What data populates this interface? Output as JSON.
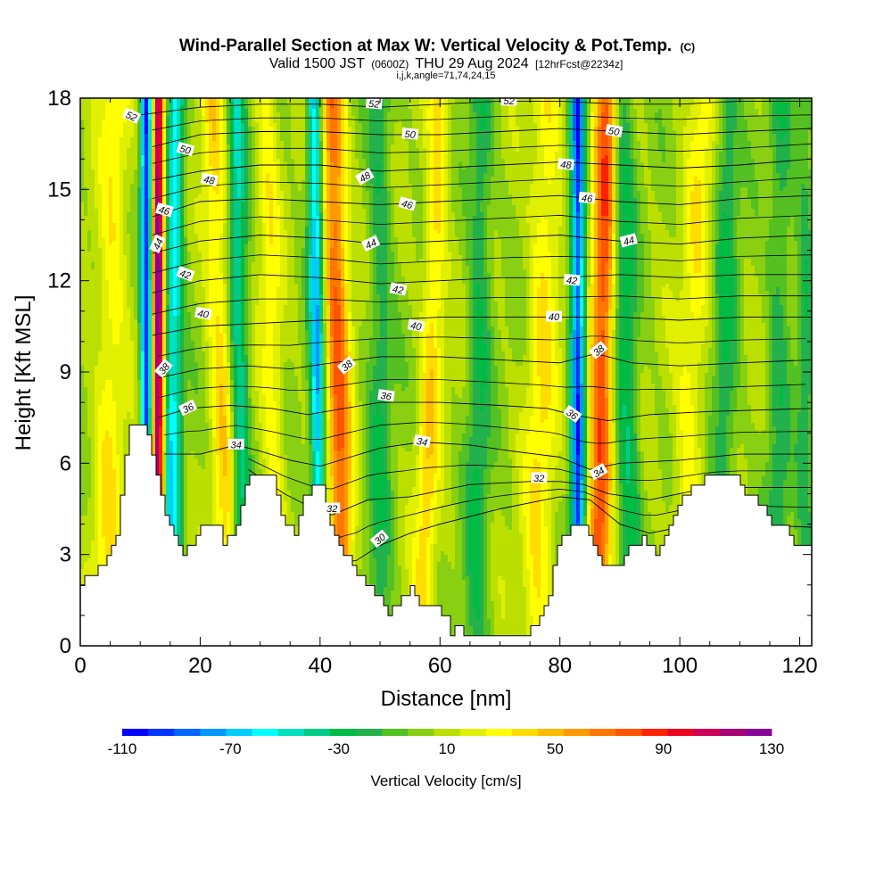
{
  "title": "Wind-Parallel Section at Max W: Vertical Velocity & Pot.Temp.",
  "title_mark": "(C)",
  "subtitle_prefix": "Valid 1500 JST",
  "subtitle_utc": "(0600Z)",
  "subtitle_date": "THU 29 Aug 2024",
  "subtitle_fcst": "[12hrFcst@2234z]",
  "subtitle_line3": "i,j,k,angle=71,74,24,15",
  "chart_data": {
    "type": "heatmap",
    "xlabel": "Distance [nm]",
    "ylabel": "Height [Kft MSL]",
    "xlim": [
      0,
      122
    ],
    "ylim": [
      0,
      18
    ],
    "x_ticks": [
      "0",
      "20",
      "40",
      "60",
      "80",
      "100",
      "120"
    ],
    "y_ticks": [
      "0",
      "3",
      "6",
      "9",
      "12",
      "15",
      "18"
    ],
    "colorbar": {
      "label": "Vertical Velocity [cm/s]",
      "ticks": [
        "-110",
        "-70",
        "-30",
        "10",
        "50",
        "90",
        "130"
      ],
      "min": -110,
      "max": 130,
      "step": 10,
      "colors": [
        "#0000ff",
        "#0033ff",
        "#0066ff",
        "#0099ff",
        "#00ccff",
        "#00ffff",
        "#00e0c0",
        "#00cc88",
        "#00bb44",
        "#22b14c",
        "#55c022",
        "#88d011",
        "#bbe000",
        "#e0f000",
        "#ffff00",
        "#ffdd00",
        "#ffbb00",
        "#ff9900",
        "#ff7700",
        "#ff5500",
        "#ff2200",
        "#ee0022",
        "#cc0055",
        "#aa0077",
        "#880099"
      ]
    },
    "terrain_kft": [
      [
        0,
        2
      ],
      [
        1,
        2.3
      ],
      [
        4,
        2.7
      ],
      [
        6,
        3.5
      ],
      [
        8,
        7.3
      ],
      [
        11,
        7.3
      ],
      [
        12,
        6
      ],
      [
        14,
        4.5
      ],
      [
        16,
        3.5
      ],
      [
        17,
        3
      ],
      [
        19,
        3.5
      ],
      [
        20,
        4
      ],
      [
        23,
        4
      ],
      [
        24,
        3.3
      ],
      [
        26,
        4
      ],
      [
        28,
        5.5
      ],
      [
        32,
        5.5
      ],
      [
        34,
        4
      ],
      [
        36,
        3.6
      ],
      [
        37,
        5
      ],
      [
        40,
        5.3
      ],
      [
        42,
        3.6
      ],
      [
        44,
        3
      ],
      [
        48,
        2
      ],
      [
        50,
        1.5
      ],
      [
        51,
        1
      ],
      [
        53,
        1.3
      ],
      [
        55,
        2
      ],
      [
        57,
        1.3
      ],
      [
        59,
        1.3
      ],
      [
        61,
        1
      ],
      [
        62,
        0.3
      ],
      [
        63,
        0.7
      ],
      [
        64,
        0.3
      ],
      [
        67,
        0.3
      ],
      [
        70,
        0.3
      ],
      [
        74,
        0.3
      ],
      [
        76,
        0.7
      ],
      [
        78,
        1.6
      ],
      [
        79,
        2.7
      ],
      [
        80,
        3.5
      ],
      [
        82,
        4
      ],
      [
        84,
        4
      ],
      [
        86,
        3
      ],
      [
        88,
        2.6
      ],
      [
        90,
        2.7
      ],
      [
        92,
        3.3
      ],
      [
        94,
        3.5
      ],
      [
        96,
        3
      ],
      [
        98,
        3.7
      ],
      [
        99,
        4.3
      ],
      [
        101,
        5
      ],
      [
        105,
        5.6
      ],
      [
        109,
        5.6
      ],
      [
        111,
        5
      ],
      [
        113,
        4.8
      ],
      [
        115,
        4
      ],
      [
        117,
        4
      ],
      [
        119,
        3.3
      ],
      [
        121,
        3.3
      ],
      [
        122,
        3.3
      ]
    ],
    "updrafts": [
      {
        "x": 13,
        "amp": 125,
        "width": 1.0,
        "x_at_top": 13
      },
      {
        "x": 44,
        "amp": 70,
        "width": 2.0,
        "x_at_top": 42
      },
      {
        "x": 86,
        "amp": 80,
        "width": 2.0,
        "x_at_top": 88
      },
      {
        "x": 57,
        "amp": 35,
        "width": 1.8,
        "x_at_top": 60
      },
      {
        "x": 25,
        "amp": 35,
        "width": 2.0,
        "x_at_top": 22
      },
      {
        "x": 76,
        "amp": 30,
        "width": 2.5,
        "x_at_top": 78
      },
      {
        "x": 100,
        "amp": 25,
        "width": 2.5,
        "x_at_top": 104
      },
      {
        "x": 4,
        "amp": 28,
        "width": 2.5,
        "x_at_top": 6
      },
      {
        "x": 33,
        "amp": 25,
        "width": 1.8,
        "x_at_top": 31
      }
    ],
    "downdrafts": [
      {
        "x": 11,
        "amp": 110,
        "width": 0.9,
        "x_at_top": 11
      },
      {
        "x": 83,
        "amp": 105,
        "width": 1.2,
        "x_at_top": 83
      },
      {
        "x": 40,
        "amp": 80,
        "width": 1.2,
        "x_at_top": 39
      },
      {
        "x": 15,
        "amp": 65,
        "width": 1.5,
        "x_at_top": 16
      },
      {
        "x": 27,
        "amp": 50,
        "width": 1.5,
        "x_at_top": 26
      },
      {
        "x": 92,
        "amp": 40,
        "width": 2.0,
        "x_at_top": 90
      },
      {
        "x": 66,
        "amp": 30,
        "width": 2.0,
        "x_at_top": 67
      },
      {
        "x": 50,
        "amp": 28,
        "width": 2.0,
        "x_at_top": 50
      },
      {
        "x": 107,
        "amp": 30,
        "width": 2.0,
        "x_at_top": 108
      },
      {
        "x": 116,
        "amp": 25,
        "width": 2.0,
        "x_at_top": 117
      },
      {
        "x": 121,
        "amp": 25,
        "width": 1.5,
        "x_at_top": 121
      }
    ],
    "isentropes": [
      {
        "theta": 30,
        "label": "30",
        "points": [
          [
            42,
            2.7
          ],
          [
            46,
            2.8
          ],
          [
            50,
            3.3
          ],
          [
            55,
            3.7
          ],
          [
            60,
            4
          ],
          [
            70,
            4.5
          ],
          [
            80,
            4.9
          ],
          [
            85,
            4.8
          ],
          [
            90,
            4
          ],
          [
            95,
            3.7
          ],
          [
            100,
            3.9
          ],
          [
            110,
            4
          ],
          [
            122,
            3.9
          ]
        ]
      },
      {
        "theta": 32,
        "label": "32",
        "points": [
          [
            28,
            5.8
          ],
          [
            34,
            5
          ],
          [
            38,
            4.6
          ],
          [
            42,
            4.3
          ],
          [
            48,
            4.8
          ],
          [
            55,
            4.9
          ],
          [
            65,
            5.3
          ],
          [
            75,
            5.4
          ],
          [
            80,
            5.4
          ],
          [
            84,
            5.3
          ],
          [
            88,
            5
          ],
          [
            95,
            4.8
          ],
          [
            105,
            5.2
          ],
          [
            115,
            5.2
          ],
          [
            122,
            5.2
          ]
        ]
      },
      {
        "theta": 34,
        "label": "34",
        "points": [
          [
            14,
            6.3
          ],
          [
            20,
            6.3
          ],
          [
            26,
            6.6
          ],
          [
            30,
            6.4
          ],
          [
            35,
            6.1
          ],
          [
            40,
            5.9
          ],
          [
            45,
            6.2
          ],
          [
            50,
            6.5
          ],
          [
            57,
            6.7
          ],
          [
            65,
            6.6
          ],
          [
            72,
            6.4
          ],
          [
            80,
            6.2
          ],
          [
            85,
            5.8
          ],
          [
            90,
            6
          ],
          [
            100,
            6.1
          ],
          [
            110,
            6.3
          ],
          [
            122,
            6.3
          ]
        ]
      },
      {
        "theta": 36,
        "label": "36",
        "points": [
          [
            13,
            7.5
          ],
          [
            18,
            7.8
          ],
          [
            25,
            7.9
          ],
          [
            32,
            7.8
          ],
          [
            38,
            7.6
          ],
          [
            44,
            7.8
          ],
          [
            50,
            8
          ],
          [
            60,
            8
          ],
          [
            70,
            7.9
          ],
          [
            78,
            7.8
          ],
          [
            82,
            7.6
          ],
          [
            88,
            7.4
          ],
          [
            95,
            7.6
          ],
          [
            105,
            7.7
          ],
          [
            122,
            7.8
          ]
        ]
      },
      {
        "theta": 38,
        "label": "38",
        "points": [
          [
            13,
            8.8
          ],
          [
            20,
            9.1
          ],
          [
            28,
            9.2
          ],
          [
            35,
            9.1
          ],
          [
            42,
            9.3
          ],
          [
            50,
            9.5
          ],
          [
            60,
            9.5
          ],
          [
            70,
            9.4
          ],
          [
            80,
            9.3
          ],
          [
            86,
            9.6
          ],
          [
            92,
            9.3
          ],
          [
            100,
            9.2
          ],
          [
            110,
            9.3
          ],
          [
            122,
            9.4
          ]
        ]
      },
      {
        "theta": 40,
        "label": "40",
        "points": [
          [
            12,
            10.2
          ],
          [
            20,
            10.5
          ],
          [
            30,
            10.6
          ],
          [
            40,
            10.7
          ],
          [
            50,
            10.7
          ],
          [
            60,
            10.8
          ],
          [
            70,
            10.8
          ],
          [
            80,
            10.8
          ],
          [
            90,
            10.8
          ],
          [
            100,
            10.7
          ],
          [
            110,
            10.8
          ],
          [
            122,
            10.8
          ]
        ]
      },
      {
        "theta": 42,
        "label": "42",
        "points": [
          [
            12,
            11.6
          ],
          [
            20,
            12
          ],
          [
            30,
            12.2
          ],
          [
            40,
            12.1
          ],
          [
            50,
            11.9
          ],
          [
            60,
            12
          ],
          [
            70,
            12.1
          ],
          [
            80,
            12.1
          ],
          [
            90,
            12.2
          ],
          [
            100,
            12.1
          ],
          [
            110,
            12.2
          ],
          [
            122,
            12.2
          ]
        ]
      },
      {
        "theta": 44,
        "label": "44",
        "points": [
          [
            12,
            12.9
          ],
          [
            20,
            13.3
          ],
          [
            30,
            13.5
          ],
          [
            40,
            13.4
          ],
          [
            50,
            13.2
          ],
          [
            60,
            13.3
          ],
          [
            70,
            13.4
          ],
          [
            80,
            13.5
          ],
          [
            90,
            13.3
          ],
          [
            100,
            13.2
          ],
          [
            110,
            13.4
          ],
          [
            122,
            13.5
          ]
        ]
      },
      {
        "theta": 46,
        "label": "46",
        "points": [
          [
            12,
            14.1
          ],
          [
            20,
            14.6
          ],
          [
            30,
            14.7
          ],
          [
            40,
            14.6
          ],
          [
            50,
            14.5
          ],
          [
            60,
            14.6
          ],
          [
            70,
            14.7
          ],
          [
            80,
            14.8
          ],
          [
            90,
            14.6
          ],
          [
            100,
            14.5
          ],
          [
            110,
            14.7
          ],
          [
            122,
            14.8
          ]
        ]
      },
      {
        "theta": 48,
        "label": "48",
        "points": [
          [
            12,
            15.3
          ],
          [
            20,
            15.6
          ],
          [
            30,
            15.8
          ],
          [
            40,
            15.8
          ],
          [
            50,
            15.6
          ],
          [
            60,
            15.7
          ],
          [
            70,
            15.8
          ],
          [
            80,
            15.9
          ],
          [
            90,
            15.8
          ],
          [
            100,
            15.7
          ],
          [
            110,
            15.8
          ],
          [
            122,
            16
          ]
        ]
      },
      {
        "theta": 50,
        "label": "50",
        "points": [
          [
            12,
            16.4
          ],
          [
            20,
            16.8
          ],
          [
            30,
            16.9
          ],
          [
            40,
            16.9
          ],
          [
            50,
            16.8
          ],
          [
            60,
            16.8
          ],
          [
            70,
            16.9
          ],
          [
            80,
            17
          ],
          [
            90,
            16.9
          ],
          [
            100,
            16.8
          ],
          [
            110,
            16.9
          ],
          [
            122,
            17
          ]
        ]
      },
      {
        "theta": 52,
        "label": "52",
        "points": [
          [
            8,
            17.4
          ],
          [
            20,
            17.7
          ],
          [
            30,
            17.8
          ],
          [
            40,
            17.8
          ],
          [
            50,
            17.7
          ],
          [
            60,
            17.8
          ],
          [
            70,
            17.9
          ],
          [
            80,
            17.9
          ],
          [
            90,
            17.8
          ],
          [
            100,
            17.8
          ],
          [
            110,
            17.9
          ],
          [
            122,
            17.9
          ]
        ]
      }
    ],
    "contour_labels": [
      {
        "text": "52",
        "x": 8.5,
        "y": 17.4,
        "angle": 25
      },
      {
        "text": "50",
        "x": 17.5,
        "y": 16.3,
        "angle": 15
      },
      {
        "text": "48",
        "x": 21.5,
        "y": 15.3,
        "angle": 12
      },
      {
        "text": "46",
        "x": 14,
        "y": 14.3,
        "angle": 15
      },
      {
        "text": "44",
        "x": 13,
        "y": 13.2,
        "angle": -65
      },
      {
        "text": "42",
        "x": 17.5,
        "y": 12.2,
        "angle": 20
      },
      {
        "text": "40",
        "x": 20.5,
        "y": 10.9,
        "angle": 10
      },
      {
        "text": "38",
        "x": 14,
        "y": 9.1,
        "angle": -50
      },
      {
        "text": "36",
        "x": 18,
        "y": 7.8,
        "angle": -25
      },
      {
        "text": "34",
        "x": 26,
        "y": 6.6,
        "angle": 0
      },
      {
        "text": "52",
        "x": 49,
        "y": 17.8,
        "angle": 5
      },
      {
        "text": "50",
        "x": 55,
        "y": 16.8,
        "angle": 5
      },
      {
        "text": "48",
        "x": 47.5,
        "y": 15.4,
        "angle": -30
      },
      {
        "text": "46",
        "x": 54.5,
        "y": 14.5,
        "angle": 15
      },
      {
        "text": "44",
        "x": 48.5,
        "y": 13.2,
        "angle": -25
      },
      {
        "text": "42",
        "x": 53,
        "y": 11.7,
        "angle": 10
      },
      {
        "text": "40",
        "x": 56,
        "y": 10.5,
        "angle": 10
      },
      {
        "text": "38",
        "x": 44.5,
        "y": 9.2,
        "angle": -40
      },
      {
        "text": "36",
        "x": 51,
        "y": 8.2,
        "angle": 8
      },
      {
        "text": "34",
        "x": 57,
        "y": 6.7,
        "angle": 10
      },
      {
        "text": "32",
        "x": 42,
        "y": 4.5,
        "angle": 0
      },
      {
        "text": "30",
        "x": 50,
        "y": 3.5,
        "angle": -40
      },
      {
        "text": "52",
        "x": 71.5,
        "y": 17.9,
        "angle": 0
      },
      {
        "text": "50",
        "x": 89,
        "y": 16.9,
        "angle": 10
      },
      {
        "text": "48",
        "x": 81,
        "y": 15.8,
        "angle": 5
      },
      {
        "text": "46",
        "x": 84.5,
        "y": 14.7,
        "angle": 5
      },
      {
        "text": "44",
        "x": 91.5,
        "y": 13.3,
        "angle": -15
      },
      {
        "text": "42",
        "x": 82,
        "y": 12,
        "angle": 5
      },
      {
        "text": "40",
        "x": 79,
        "y": 10.8,
        "angle": 0
      },
      {
        "text": "38",
        "x": 86.5,
        "y": 9.7,
        "angle": -40
      },
      {
        "text": "36",
        "x": 82,
        "y": 7.6,
        "angle": 35
      },
      {
        "text": "34",
        "x": 86.5,
        "y": 5.7,
        "angle": -30
      },
      {
        "text": "32",
        "x": 76.5,
        "y": 5.5,
        "angle": 0
      }
    ]
  }
}
